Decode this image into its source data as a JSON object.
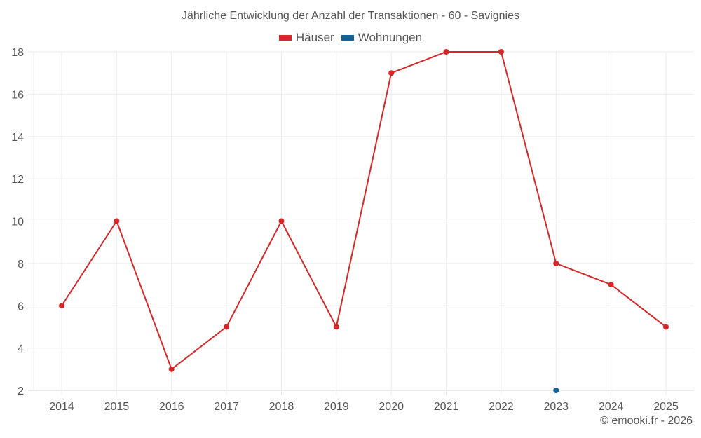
{
  "title": "Jährliche Entwicklung der Anzahl der Transaktionen - 60 - Savignies",
  "legend": [
    {
      "label": "Häuser",
      "color": "#d62728"
    },
    {
      "label": "Wohnungen",
      "color": "#0e639c"
    }
  ],
  "credit": "© emooki.fr - 2026",
  "chart_data": {
    "type": "line",
    "title": "Jährliche Entwicklung der Anzahl der Transaktionen - 60 - Savignies",
    "xlabel": "",
    "ylabel": "",
    "categories": [
      "2014",
      "2015",
      "2016",
      "2017",
      "2018",
      "2019",
      "2020",
      "2021",
      "2022",
      "2023",
      "2024",
      "2025"
    ],
    "series": [
      {
        "name": "Häuser",
        "color": "#d62728",
        "values": [
          6,
          10,
          3,
          5,
          10,
          5,
          17,
          18,
          18,
          8,
          7,
          5
        ]
      },
      {
        "name": "Wohnungen",
        "color": "#0e639c",
        "values": [
          null,
          null,
          null,
          null,
          null,
          null,
          null,
          null,
          null,
          2,
          null,
          null
        ]
      }
    ],
    "yticks": [
      2,
      4,
      6,
      8,
      10,
      12,
      14,
      16,
      18
    ],
    "ylim": [
      2,
      18
    ],
    "grid": true,
    "legend_position": "top"
  }
}
